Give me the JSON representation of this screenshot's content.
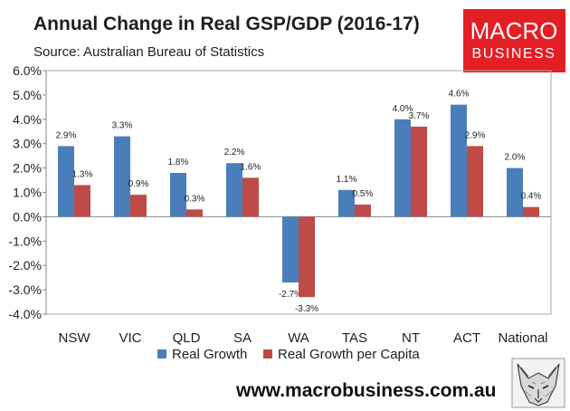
{
  "chart_data": {
    "type": "bar",
    "title": "Annual Change in Real GSP/GDP (2016-17)",
    "subtitle": "Source: Australian Bureau of Statistics",
    "categories": [
      "NSW",
      "VIC",
      "QLD",
      "SA",
      "WA",
      "TAS",
      "NT",
      "ACT",
      "National"
    ],
    "series": [
      {
        "name": "Real Growth",
        "color": "#4a7ebb",
        "values": [
          2.9,
          3.3,
          1.8,
          2.2,
          -2.7,
          1.1,
          4.0,
          4.6,
          2.0
        ]
      },
      {
        "name": "Real Growth per Capita",
        "color": "#be4b48",
        "values": [
          1.3,
          0.9,
          0.3,
          1.6,
          -3.3,
          0.5,
          3.7,
          2.9,
          0.4
        ]
      }
    ],
    "ylim": [
      -4.0,
      6.0
    ],
    "yticks": [
      6.0,
      5.0,
      4.0,
      3.0,
      2.0,
      1.0,
      0.0,
      -1.0,
      -2.0,
      -3.0,
      -4.0
    ],
    "ytick_labels": [
      "6.0%",
      "5.0%",
      "4.0%",
      "3.0%",
      "2.0%",
      "1.0%",
      "0.0%",
      "-1.0%",
      "-2.0%",
      "-3.0%",
      "-4.0%"
    ],
    "data_labels": [
      [
        "2.9%",
        "3.3%",
        "1.8%",
        "2.2%",
        "-2.7%",
        "1.1%",
        "4.0%",
        "4.6%",
        "2.0%"
      ],
      [
        "1.3%",
        "0.9%",
        "0.3%",
        "1.6%",
        "-3.3%",
        "0.5%",
        "3.7%",
        "2.9%",
        "0.4%"
      ]
    ],
    "xlabel": "",
    "ylabel": "",
    "grid": false,
    "legend": "bottom"
  },
  "branding": {
    "logo_line1": "MACRO",
    "logo_line2": "BUSINESS",
    "logo_color": "#e31e24",
    "website": "www.macrobusiness.com.au",
    "mascot": "wolf-head-icon"
  }
}
